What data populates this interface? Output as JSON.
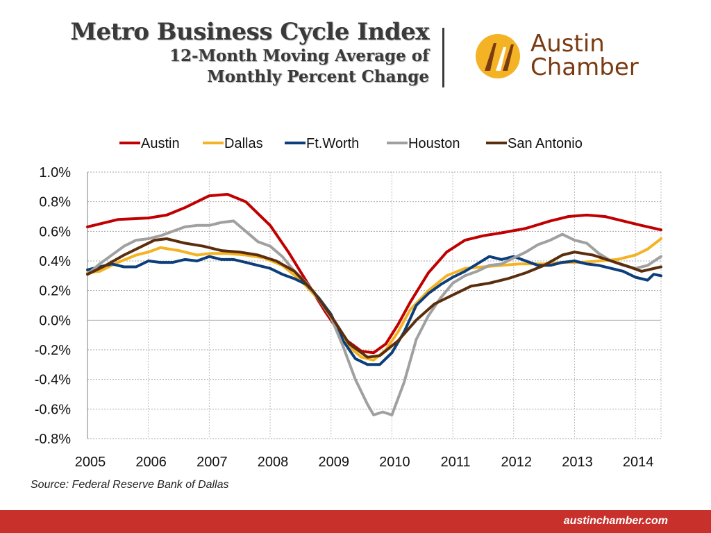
{
  "header": {
    "title": "Metro Business Cycle Index",
    "subtitle_line1": "12-Month Moving Average of",
    "subtitle_line2": "Monthly Percent Change"
  },
  "logo": {
    "line1": "Austin",
    "line2": "Chamber",
    "accent_color": "#f4b324",
    "text_color": "#7a3b12"
  },
  "source": "Source: Federal Reserve Bank of Dallas",
  "footer": {
    "url": "austinchamber.com",
    "bar_color": "#c8302c"
  },
  "chart_data": {
    "type": "line",
    "title": "",
    "xlabel": "",
    "ylabel": "",
    "x_ticks": [
      "2005",
      "2006",
      "2007",
      "2008",
      "2009",
      "2010",
      "2011",
      "2012",
      "2013",
      "2014"
    ],
    "x_range": [
      2005,
      2014.42
    ],
    "y_range": [
      -0.8,
      1.0
    ],
    "y_ticks": [
      "1.0%",
      "0.8%",
      "0.6%",
      "0.4%",
      "0.2%",
      "0.0%",
      "-0.2%",
      "-0.4%",
      "-0.6%",
      "-0.8%"
    ],
    "grid": true,
    "legend_position": "top",
    "series": [
      {
        "name": "Austin",
        "color": "#c00000",
        "points": [
          [
            2005,
            0.63
          ],
          [
            2005.5,
            0.68
          ],
          [
            2006,
            0.69
          ],
          [
            2006.3,
            0.71
          ],
          [
            2006.6,
            0.76
          ],
          [
            2007,
            0.84
          ],
          [
            2007.3,
            0.85
          ],
          [
            2007.6,
            0.8
          ],
          [
            2008,
            0.64
          ],
          [
            2008.3,
            0.46
          ],
          [
            2008.6,
            0.26
          ],
          [
            2008.9,
            0.06
          ],
          [
            2009.2,
            -0.12
          ],
          [
            2009.5,
            -0.21
          ],
          [
            2009.7,
            -0.22
          ],
          [
            2009.9,
            -0.16
          ],
          [
            2010.1,
            -0.03
          ],
          [
            2010.3,
            0.12
          ],
          [
            2010.6,
            0.32
          ],
          [
            2010.9,
            0.46
          ],
          [
            2011.2,
            0.54
          ],
          [
            2011.5,
            0.57
          ],
          [
            2011.8,
            0.59
          ],
          [
            2012.2,
            0.62
          ],
          [
            2012.6,
            0.67
          ],
          [
            2012.9,
            0.7
          ],
          [
            2013.2,
            0.71
          ],
          [
            2013.5,
            0.7
          ],
          [
            2013.8,
            0.67
          ],
          [
            2014.1,
            0.64
          ],
          [
            2014.42,
            0.61
          ]
        ]
      },
      {
        "name": "Dallas",
        "color": "#f4b324",
        "points": [
          [
            2005,
            0.32
          ],
          [
            2005.2,
            0.33
          ],
          [
            2005.5,
            0.39
          ],
          [
            2005.8,
            0.44
          ],
          [
            2006,
            0.46
          ],
          [
            2006.2,
            0.49
          ],
          [
            2006.5,
            0.47
          ],
          [
            2006.8,
            0.44
          ],
          [
            2007,
            0.45
          ],
          [
            2007.3,
            0.45
          ],
          [
            2007.6,
            0.44
          ],
          [
            2007.9,
            0.42
          ],
          [
            2008.2,
            0.37
          ],
          [
            2008.5,
            0.27
          ],
          [
            2008.8,
            0.14
          ],
          [
            2009.1,
            -0.04
          ],
          [
            2009.3,
            -0.18
          ],
          [
            2009.5,
            -0.25
          ],
          [
            2009.7,
            -0.27
          ],
          [
            2009.9,
            -0.2
          ],
          [
            2010.1,
            -0.08
          ],
          [
            2010.3,
            0.07
          ],
          [
            2010.6,
            0.2
          ],
          [
            2010.9,
            0.3
          ],
          [
            2011.2,
            0.35
          ],
          [
            2011.5,
            0.36
          ],
          [
            2011.8,
            0.37
          ],
          [
            2012.1,
            0.38
          ],
          [
            2012.5,
            0.38
          ],
          [
            2012.8,
            0.39
          ],
          [
            2013.1,
            0.39
          ],
          [
            2013.4,
            0.4
          ],
          [
            2013.7,
            0.41
          ],
          [
            2014,
            0.44
          ],
          [
            2014.2,
            0.48
          ],
          [
            2014.42,
            0.55
          ]
        ]
      },
      {
        "name": "Ft.Worth",
        "color": "#0b3e7a",
        "points": [
          [
            2005,
            0.34
          ],
          [
            2005.2,
            0.36
          ],
          [
            2005.4,
            0.38
          ],
          [
            2005.6,
            0.36
          ],
          [
            2005.8,
            0.36
          ],
          [
            2006,
            0.4
          ],
          [
            2006.2,
            0.39
          ],
          [
            2006.4,
            0.39
          ],
          [
            2006.6,
            0.41
          ],
          [
            2006.8,
            0.4
          ],
          [
            2007,
            0.43
          ],
          [
            2007.2,
            0.41
          ],
          [
            2007.4,
            0.41
          ],
          [
            2007.6,
            0.39
          ],
          [
            2007.8,
            0.37
          ],
          [
            2008,
            0.35
          ],
          [
            2008.2,
            0.31
          ],
          [
            2008.4,
            0.28
          ],
          [
            2008.6,
            0.24
          ],
          [
            2008.8,
            0.15
          ],
          [
            2009,
            0.04
          ],
          [
            2009.2,
            -0.14
          ],
          [
            2009.4,
            -0.26
          ],
          [
            2009.6,
            -0.3
          ],
          [
            2009.8,
            -0.3
          ],
          [
            2010,
            -0.22
          ],
          [
            2010.2,
            -0.08
          ],
          [
            2010.4,
            0.1
          ],
          [
            2010.6,
            0.18
          ],
          [
            2010.8,
            0.24
          ],
          [
            2011,
            0.29
          ],
          [
            2011.2,
            0.33
          ],
          [
            2011.4,
            0.38
          ],
          [
            2011.6,
            0.43
          ],
          [
            2011.8,
            0.41
          ],
          [
            2012,
            0.43
          ],
          [
            2012.2,
            0.4
          ],
          [
            2012.4,
            0.37
          ],
          [
            2012.6,
            0.37
          ],
          [
            2012.8,
            0.39
          ],
          [
            2013,
            0.4
          ],
          [
            2013.2,
            0.38
          ],
          [
            2013.4,
            0.37
          ],
          [
            2013.6,
            0.35
          ],
          [
            2013.8,
            0.33
          ],
          [
            2014,
            0.29
          ],
          [
            2014.2,
            0.27
          ],
          [
            2014.3,
            0.31
          ],
          [
            2014.42,
            0.3
          ]
        ]
      },
      {
        "name": "Houston",
        "color": "#a0a0a0",
        "points": [
          [
            2005,
            0.31
          ],
          [
            2005.2,
            0.38
          ],
          [
            2005.4,
            0.44
          ],
          [
            2005.6,
            0.5
          ],
          [
            2005.8,
            0.54
          ],
          [
            2006,
            0.55
          ],
          [
            2006.2,
            0.57
          ],
          [
            2006.4,
            0.6
          ],
          [
            2006.6,
            0.63
          ],
          [
            2006.8,
            0.64
          ],
          [
            2007,
            0.64
          ],
          [
            2007.2,
            0.66
          ],
          [
            2007.4,
            0.67
          ],
          [
            2007.6,
            0.6
          ],
          [
            2007.8,
            0.53
          ],
          [
            2008,
            0.5
          ],
          [
            2008.2,
            0.43
          ],
          [
            2008.4,
            0.33
          ],
          [
            2008.6,
            0.25
          ],
          [
            2008.8,
            0.14
          ],
          [
            2009,
            0.02
          ],
          [
            2009.2,
            -0.18
          ],
          [
            2009.4,
            -0.4
          ],
          [
            2009.6,
            -0.57
          ],
          [
            2009.7,
            -0.64
          ],
          [
            2009.85,
            -0.62
          ],
          [
            2010,
            -0.64
          ],
          [
            2010.2,
            -0.42
          ],
          [
            2010.4,
            -0.13
          ],
          [
            2010.6,
            0.03
          ],
          [
            2010.8,
            0.15
          ],
          [
            2011,
            0.25
          ],
          [
            2011.2,
            0.3
          ],
          [
            2011.4,
            0.33
          ],
          [
            2011.6,
            0.37
          ],
          [
            2011.8,
            0.38
          ],
          [
            2012,
            0.42
          ],
          [
            2012.2,
            0.46
          ],
          [
            2012.4,
            0.51
          ],
          [
            2012.6,
            0.54
          ],
          [
            2012.8,
            0.58
          ],
          [
            2013,
            0.54
          ],
          [
            2013.2,
            0.52
          ],
          [
            2013.4,
            0.45
          ],
          [
            2013.6,
            0.4
          ],
          [
            2013.8,
            0.37
          ],
          [
            2014,
            0.35
          ],
          [
            2014.2,
            0.37
          ],
          [
            2014.42,
            0.43
          ]
        ]
      },
      {
        "name": "San Antonio",
        "color": "#5a2d0c",
        "points": [
          [
            2005,
            0.31
          ],
          [
            2005.3,
            0.37
          ],
          [
            2005.6,
            0.44
          ],
          [
            2005.9,
            0.5
          ],
          [
            2006.1,
            0.54
          ],
          [
            2006.3,
            0.55
          ],
          [
            2006.6,
            0.52
          ],
          [
            2006.9,
            0.5
          ],
          [
            2007.2,
            0.47
          ],
          [
            2007.5,
            0.46
          ],
          [
            2007.8,
            0.44
          ],
          [
            2008.1,
            0.4
          ],
          [
            2008.4,
            0.33
          ],
          [
            2008.7,
            0.2
          ],
          [
            2009,
            0.03
          ],
          [
            2009.3,
            -0.16
          ],
          [
            2009.6,
            -0.25
          ],
          [
            2009.8,
            -0.24
          ],
          [
            2010.1,
            -0.14
          ],
          [
            2010.4,
            0.0
          ],
          [
            2010.7,
            0.11
          ],
          [
            2011,
            0.17
          ],
          [
            2011.3,
            0.23
          ],
          [
            2011.6,
            0.25
          ],
          [
            2011.9,
            0.28
          ],
          [
            2012.2,
            0.32
          ],
          [
            2012.5,
            0.37
          ],
          [
            2012.8,
            0.44
          ],
          [
            2013,
            0.46
          ],
          [
            2013.3,
            0.44
          ],
          [
            2013.6,
            0.4
          ],
          [
            2013.9,
            0.36
          ],
          [
            2014.1,
            0.33
          ],
          [
            2014.42,
            0.36
          ]
        ]
      }
    ]
  }
}
